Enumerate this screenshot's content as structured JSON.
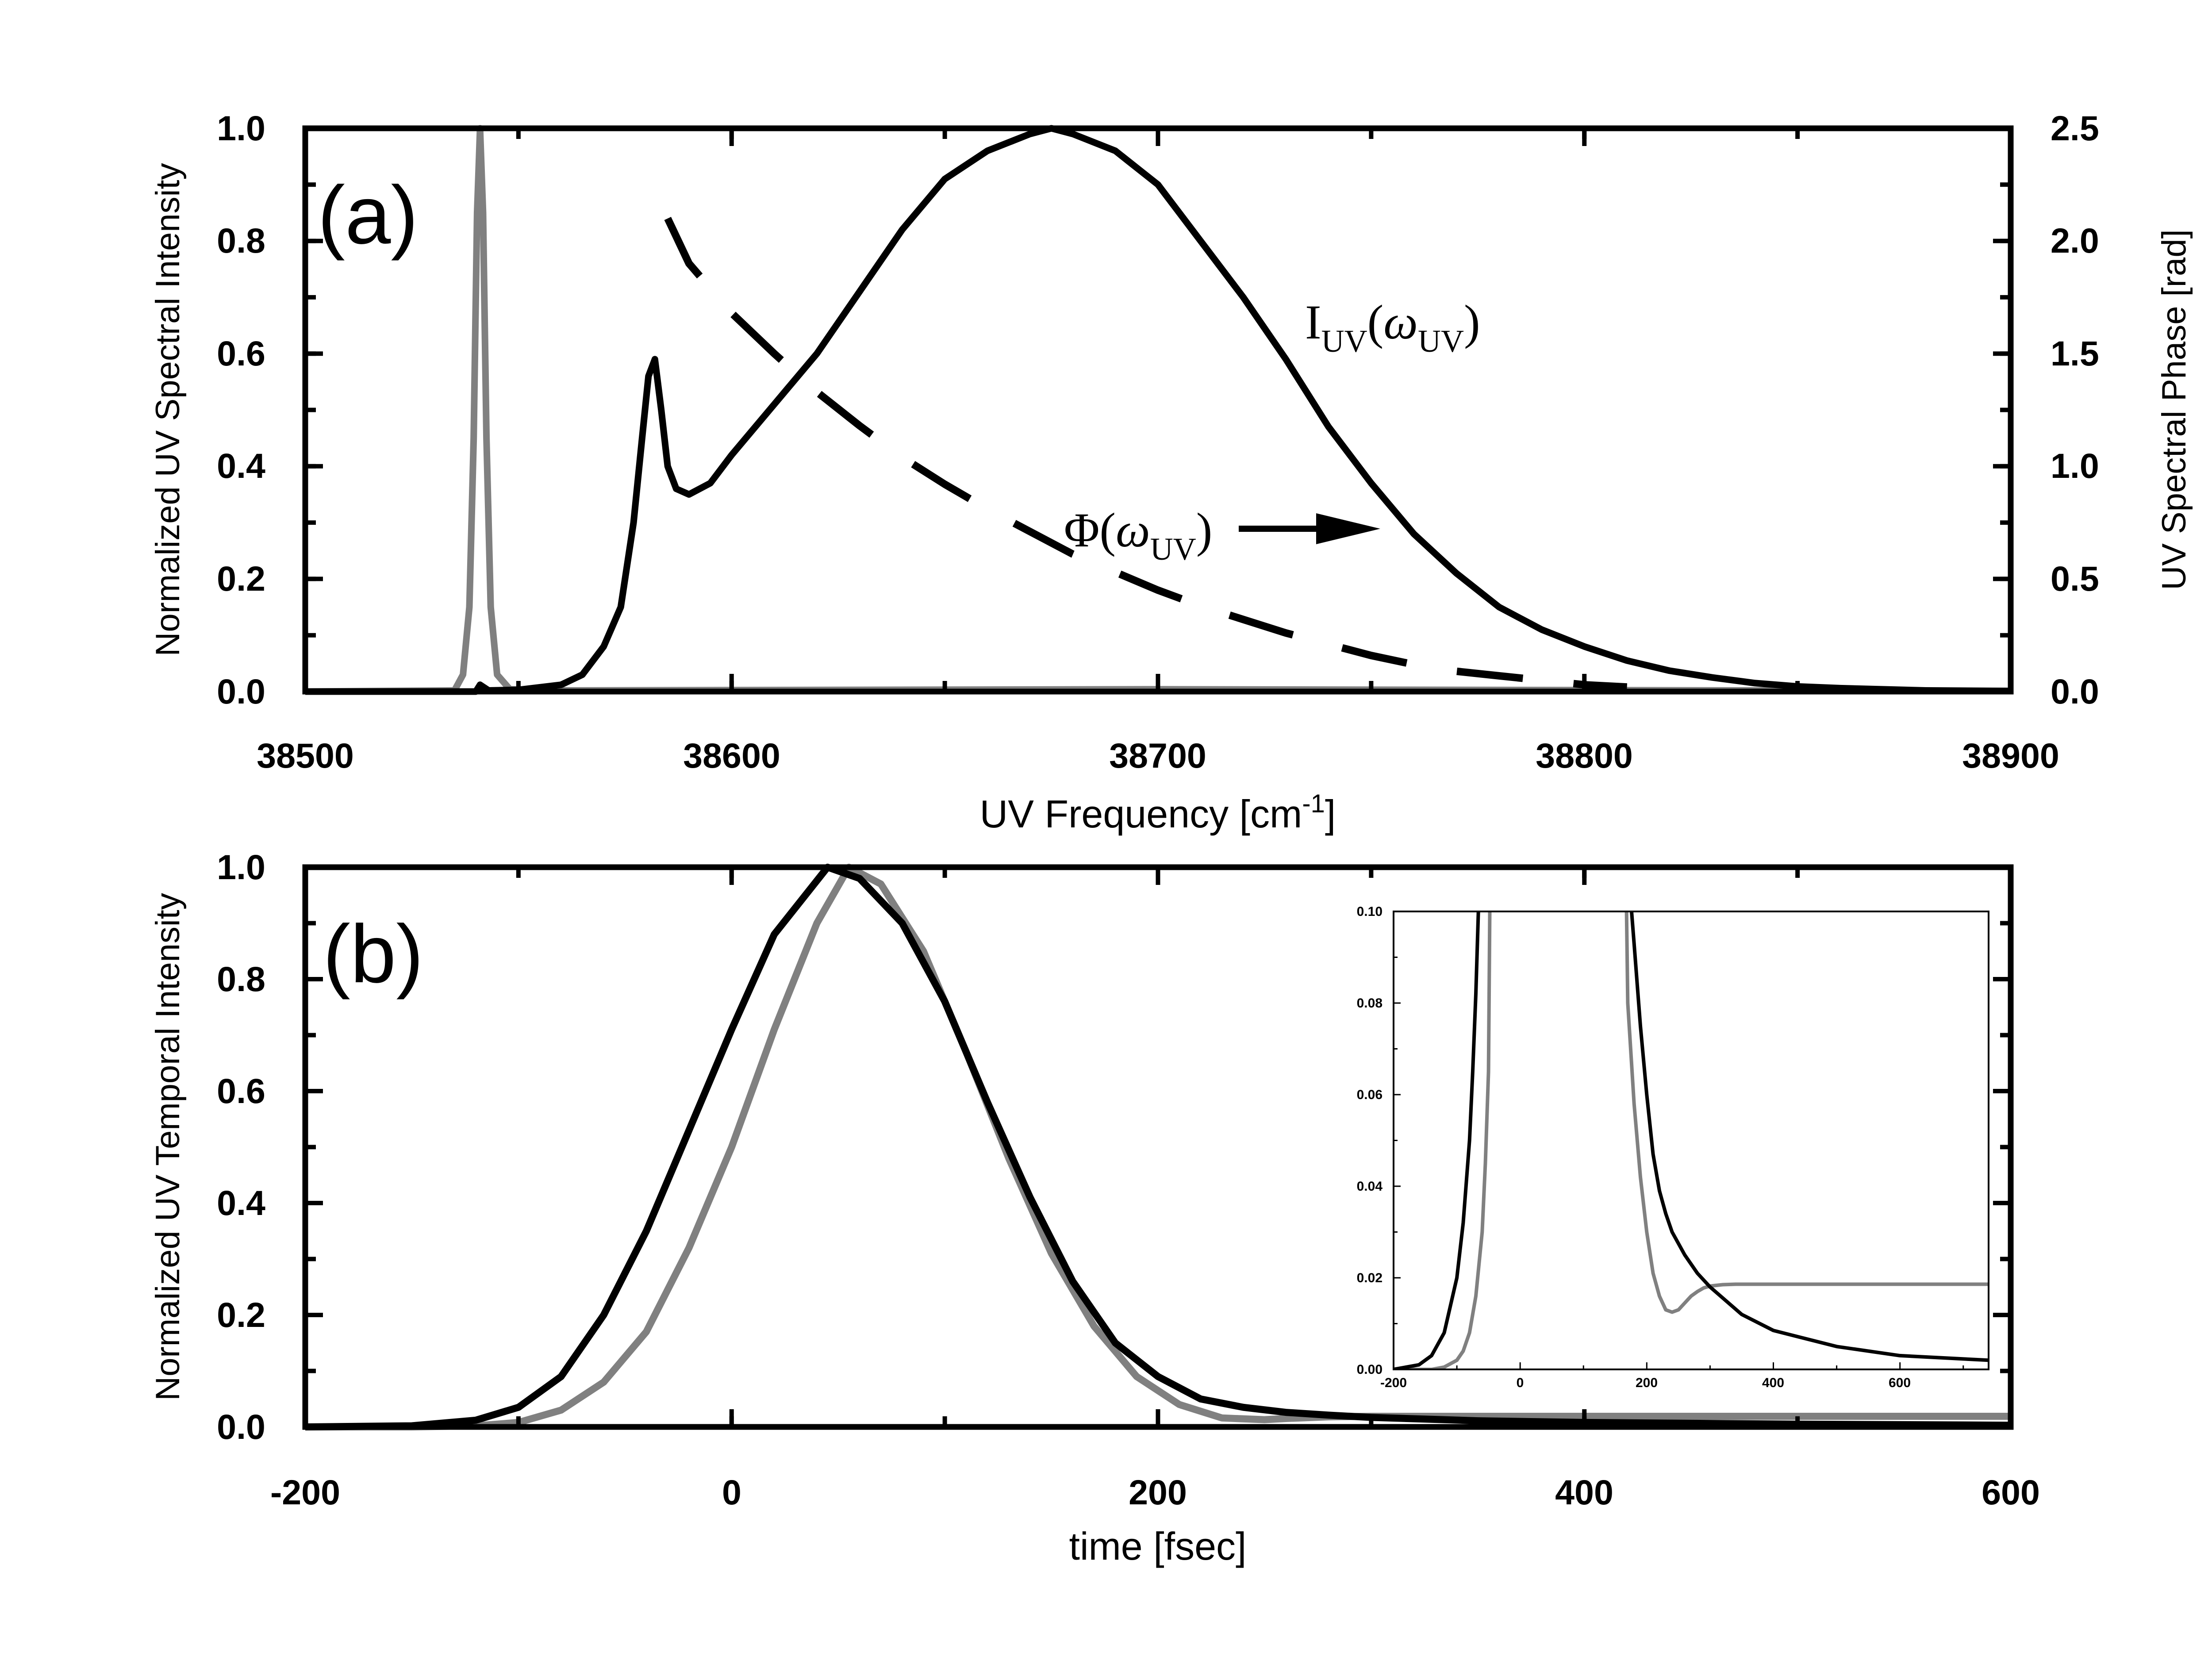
{
  "colors": {
    "black": "#000000",
    "gray": "#808080",
    "background": "#ffffff"
  },
  "chart_data": [
    {
      "panel": "a",
      "panel_label": "(a)",
      "type": "line",
      "xlabel": "UV Frequency [cm",
      "xlabel_sup": "-1",
      "xlabel_end": "]",
      "ylabel": "Normalized UV Spectral Intensity",
      "y2label": "UV Spectral Phase [rad]",
      "xlim": [
        38500,
        38900
      ],
      "ylim": [
        0,
        1.0
      ],
      "y2lim": [
        0,
        2.5
      ],
      "xticks": [
        "38500",
        "38600",
        "38700",
        "38800",
        "38900"
      ],
      "yticks": [
        "0.0",
        "0.2",
        "0.4",
        "0.6",
        "0.8",
        "1.0"
      ],
      "y2ticks": [
        "0.0",
        "0.5",
        "1.0",
        "1.5",
        "2.0",
        "2.5"
      ],
      "annotations": [
        {
          "name": "intensity-label",
          "main": "I",
          "sub": "UV",
          "paren_open": "(",
          "greek": "ω",
          "greek_sub": "UV",
          "paren_close": ")"
        },
        {
          "name": "phase-label",
          "main": "Φ",
          "paren_open": "(",
          "greek": "ω",
          "greek_sub": "UV",
          "paren_close": ")"
        }
      ],
      "series": [
        {
          "name": "gray spectral line",
          "color": "#808080",
          "axis": "left",
          "x": [
            38500,
            38535,
            38537,
            38538.5,
            38539.5,
            38540.3,
            38541,
            38541.7,
            38542.5,
            38543.5,
            38545,
            38548,
            38560,
            38700,
            38900
          ],
          "y": [
            0,
            0.002,
            0.03,
            0.15,
            0.45,
            0.85,
            1.0,
            0.85,
            0.45,
            0.15,
            0.03,
            0.004,
            0.002,
            0.004,
            0.001
          ]
        },
        {
          "name": "black spectral intensity",
          "color": "#000000",
          "axis": "left",
          "x": [
            38500,
            38540,
            38541,
            38543,
            38550,
            38560,
            38565,
            38570,
            38574,
            38577,
            38579,
            38580.5,
            38582,
            38583.5,
            38585,
            38587,
            38590,
            38595,
            38600,
            38610,
            38620,
            38630,
            38640,
            38650,
            38660,
            38670,
            38675,
            38680,
            38690,
            38700,
            38710,
            38720,
            38730,
            38740,
            38750,
            38760,
            38770,
            38780,
            38790,
            38800,
            38810,
            38820,
            38830,
            38840,
            38850,
            38860,
            38880,
            38900
          ],
          "y": [
            0,
            0.0,
            0.012,
            0.002,
            0.003,
            0.012,
            0.03,
            0.08,
            0.15,
            0.3,
            0.45,
            0.56,
            0.59,
            0.5,
            0.4,
            0.36,
            0.35,
            0.37,
            0.42,
            0.51,
            0.6,
            0.71,
            0.82,
            0.91,
            0.96,
            0.99,
            1.0,
            0.99,
            0.96,
            0.9,
            0.8,
            0.7,
            0.59,
            0.47,
            0.37,
            0.28,
            0.21,
            0.15,
            0.11,
            0.08,
            0.055,
            0.037,
            0.025,
            0.015,
            0.009,
            0.006,
            0.002,
            0.001
          ]
        },
        {
          "name": "phase dashed",
          "color": "#000000",
          "axis": "right",
          "dashed": true,
          "x": [
            38585,
            38590,
            38600,
            38610,
            38620,
            38630,
            38640,
            38650,
            38660,
            38670,
            38680,
            38690,
            38700,
            38710,
            38720,
            38730,
            38740,
            38750,
            38760,
            38770,
            38780,
            38790,
            38800,
            38810
          ],
          "y": [
            2.1,
            1.9,
            1.68,
            1.5,
            1.33,
            1.18,
            1.04,
            0.92,
            0.81,
            0.71,
            0.61,
            0.53,
            0.45,
            0.38,
            0.32,
            0.26,
            0.21,
            0.16,
            0.12,
            0.09,
            0.07,
            0.05,
            0.03,
            0.02
          ]
        }
      ]
    },
    {
      "panel": "b",
      "panel_label": "(b)",
      "type": "line",
      "xlabel": "time [fsec]",
      "ylabel": "Normalized UV Temporal Intensity",
      "xlim": [
        -200,
        600
      ],
      "ylim": [
        0,
        1.0
      ],
      "xticks": [
        "-200",
        "0",
        "200",
        "400",
        "600"
      ],
      "yticks": [
        "0.0",
        "0.2",
        "0.4",
        "0.6",
        "0.8",
        "1.0"
      ],
      "series": [
        {
          "name": "gray temporal",
          "color": "#808080",
          "x": [
            -200,
            -150,
            -120,
            -100,
            -80,
            -60,
            -40,
            -20,
            0,
            20,
            40,
            55,
            70,
            90,
            110,
            130,
            150,
            170,
            190,
            210,
            230,
            250,
            260,
            280,
            300,
            400,
            500,
            600
          ],
          "y": [
            0,
            0.0,
            0.002,
            0.008,
            0.03,
            0.08,
            0.17,
            0.32,
            0.5,
            0.71,
            0.9,
            1.0,
            0.97,
            0.85,
            0.67,
            0.48,
            0.31,
            0.18,
            0.09,
            0.04,
            0.016,
            0.013,
            0.015,
            0.018,
            0.019,
            0.019,
            0.019,
            0.019
          ]
        },
        {
          "name": "black temporal",
          "color": "#000000",
          "x": [
            -200,
            -150,
            -120,
            -100,
            -80,
            -60,
            -40,
            -20,
            0,
            20,
            45,
            60,
            80,
            100,
            120,
            140,
            160,
            180,
            200,
            220,
            240,
            260,
            280,
            300,
            350,
            400,
            500,
            600
          ],
          "y": [
            0,
            0.002,
            0.012,
            0.035,
            0.09,
            0.2,
            0.35,
            0.53,
            0.71,
            0.88,
            1.0,
            0.98,
            0.9,
            0.76,
            0.58,
            0.41,
            0.26,
            0.15,
            0.09,
            0.05,
            0.035,
            0.026,
            0.021,
            0.017,
            0.011,
            0.008,
            0.005,
            0.003
          ]
        }
      ],
      "inset": {
        "xlim": [
          -200,
          740
        ],
        "ylim": [
          0,
          0.1
        ],
        "xticks": [
          "-200",
          "0",
          "200",
          "400",
          "600"
        ],
        "yticks": [
          "0.00",
          "0.02",
          "0.04",
          "0.06",
          "0.08",
          "0.10"
        ],
        "series": [
          {
            "name": "gray inset",
            "color": "#808080",
            "x": [
              -200,
              -140,
              -120,
              -100,
              -90,
              -80,
              -70,
              -60,
              -55,
              -50,
              -48,
              null,
              168,
              170,
              180,
              190,
              200,
              210,
              220,
              230,
              240,
              250,
              260,
              270,
              280,
              290,
              300,
              320,
              340,
              360,
              380,
              400,
              500,
              600,
              740
            ],
            "y": [
              0,
              0.0,
              0.0005,
              0.002,
              0.004,
              0.008,
              0.016,
              0.03,
              0.045,
              0.065,
              0.1,
              null,
              0.1,
              0.08,
              0.058,
              0.042,
              0.03,
              0.021,
              0.016,
              0.013,
              0.0125,
              0.013,
              0.0145,
              0.016,
              0.017,
              0.0178,
              0.0182,
              0.0185,
              0.0186,
              0.0186,
              0.0186,
              0.0186,
              0.0186,
              0.0186,
              0.0186
            ]
          },
          {
            "name": "black inset",
            "color": "#000000",
            "x": [
              -200,
              -160,
              -140,
              -120,
              -100,
              -90,
              -80,
              -75,
              -70,
              -66,
              null,
              176,
              180,
              190,
              200,
              210,
              220,
              230,
              240,
              260,
              280,
              300,
              350,
              400,
              500,
              600,
              740
            ],
            "y": [
              0,
              0.001,
              0.003,
              0.008,
              0.02,
              0.032,
              0.05,
              0.065,
              0.082,
              0.1,
              null,
              0.1,
              0.093,
              0.075,
              0.06,
              0.047,
              0.039,
              0.034,
              0.03,
              0.025,
              0.021,
              0.018,
              0.012,
              0.0085,
              0.005,
              0.003,
              0.002
            ]
          }
        ]
      }
    }
  ]
}
